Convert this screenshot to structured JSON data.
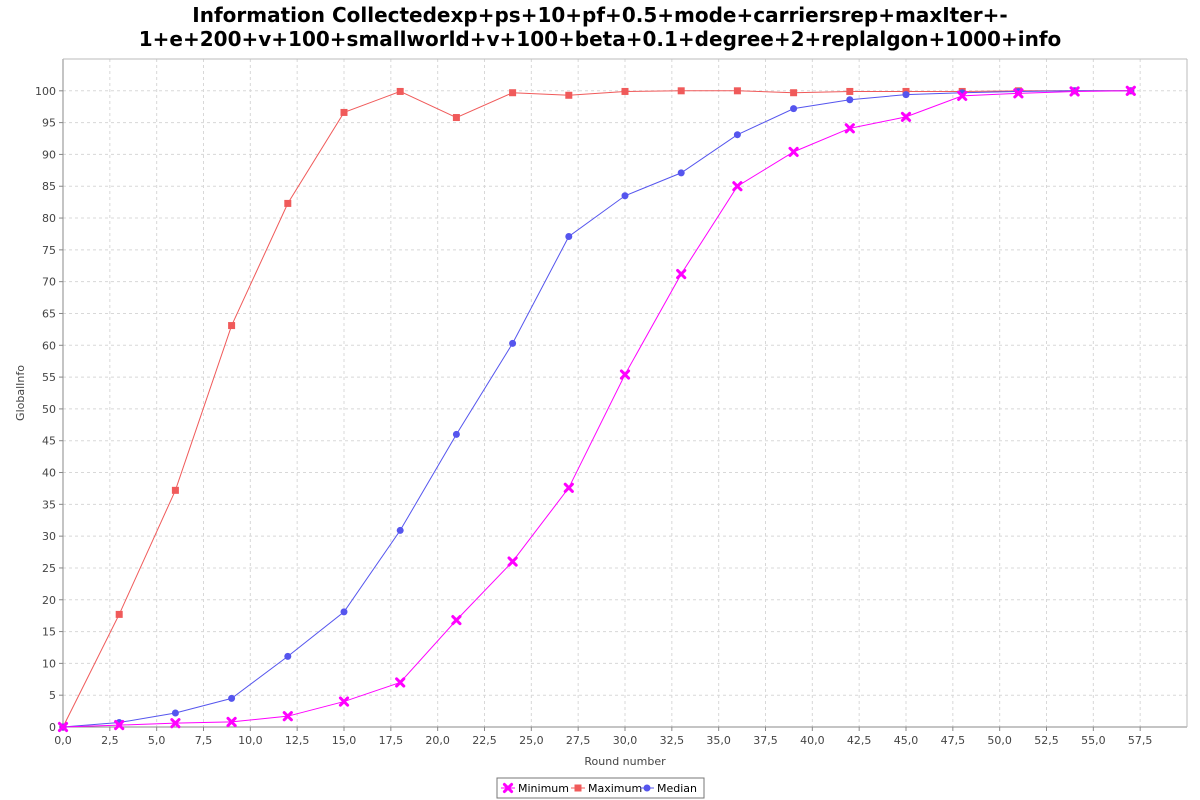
{
  "chart_data": {
    "type": "line",
    "title_lines": [
      "Information Collectedexp+ps+10+pf+0.5+mode+carriersrep+maxIter+-",
      "1+e+200+v+100+smallworld+v+100+beta+0.1+degree+2+replalgon+1000+info"
    ],
    "xlabel": "Round number",
    "ylabel": "GlobalInfo",
    "xlim": [
      0,
      60
    ],
    "ylim": [
      0,
      105
    ],
    "x_ticks": [
      "0,0",
      "2,5",
      "5,0",
      "7,5",
      "10,0",
      "12,5",
      "15,0",
      "17,5",
      "20,0",
      "22,5",
      "25,0",
      "27,5",
      "30,0",
      "32,5",
      "35,0",
      "37,5",
      "40,0",
      "42,5",
      "45,0",
      "47,5",
      "50,0",
      "52,5",
      "55,0",
      "57,5"
    ],
    "y_ticks": [
      "0",
      "5",
      "10",
      "15",
      "20",
      "25",
      "30",
      "35",
      "40",
      "45",
      "50",
      "55",
      "60",
      "65",
      "70",
      "75",
      "80",
      "85",
      "90",
      "95",
      "100"
    ],
    "grid": true,
    "legend_position": "bottom",
    "x": [
      0,
      3,
      6,
      9,
      12,
      15,
      18,
      21,
      24,
      27,
      30,
      33,
      36,
      39,
      42,
      45,
      48,
      51,
      54,
      57
    ],
    "series": [
      {
        "name": "Minimum",
        "color": "#ff00ff",
        "marker": "x",
        "values": [
          0,
          0.3,
          0.6,
          0.8,
          1.7,
          4.0,
          7.0,
          16.8,
          26.0,
          37.6,
          55.4,
          71.2,
          85.0,
          90.4,
          94.1,
          95.9,
          99.2,
          99.6,
          99.9,
          100
        ]
      },
      {
        "name": "Maximum",
        "color": "#f05a5a",
        "marker": "square",
        "values": [
          0,
          17.7,
          37.2,
          63.1,
          82.3,
          96.6,
          99.9,
          95.8,
          99.7,
          99.3,
          99.9,
          100,
          100,
          99.7,
          99.9,
          99.9,
          99.9,
          100,
          100,
          100
        ]
      },
      {
        "name": "Median",
        "color": "#5555ee",
        "marker": "circle",
        "values": [
          0,
          0.7,
          2.2,
          4.5,
          11.1,
          18.1,
          30.9,
          46.0,
          60.3,
          77.1,
          83.5,
          87.1,
          93.1,
          97.2,
          98.6,
          99.4,
          99.7,
          99.9,
          100,
          100
        ]
      }
    ]
  }
}
